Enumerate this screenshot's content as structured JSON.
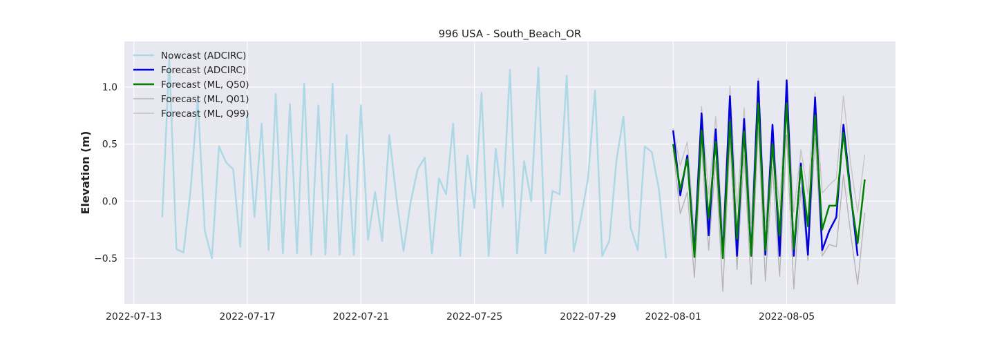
{
  "chart_data": {
    "type": "line",
    "title": "996 USA - South_Beach_OR",
    "xlabel": "",
    "ylabel": "Elevation (m)",
    "x_type": "datetime",
    "xlim": [
      "2022-07-12T16:00",
      "2022-08-08T20:00"
    ],
    "ylim": [
      -0.9,
      1.4
    ],
    "x_ticks": [
      "2022-07-13",
      "2022-07-17",
      "2022-07-21",
      "2022-07-25",
      "2022-07-29",
      "2022-08-01",
      "2022-08-05"
    ],
    "y_ticks": [
      -0.5,
      0.0,
      0.5,
      1.0
    ],
    "y_tick_labels": [
      "−0.5",
      "0.0",
      "0.5",
      "1.0"
    ],
    "grid": true,
    "background": "#e8e8f0",
    "legend_position": "top-left",
    "series": [
      {
        "name": "Nowcast (ADCIRC)",
        "color": "#add8e6",
        "width": 2.5,
        "points": [
          [
            "2022-07-14T00:00",
            -0.14
          ],
          [
            "2022-07-14T06:00",
            1.25
          ],
          [
            "2022-07-14T12:00",
            -0.42
          ],
          [
            "2022-07-14T18:00",
            -0.45
          ],
          [
            "2022-07-15T00:00",
            0.1
          ],
          [
            "2022-07-15T06:00",
            0.9
          ],
          [
            "2022-07-15T12:00",
            -0.26
          ],
          [
            "2022-07-15T18:00",
            -0.5
          ],
          [
            "2022-07-16T00:00",
            0.48
          ],
          [
            "2022-07-16T06:00",
            0.34
          ],
          [
            "2022-07-16T12:00",
            0.28
          ],
          [
            "2022-07-16T18:00",
            -0.4
          ],
          [
            "2022-07-17T00:00",
            0.75
          ],
          [
            "2022-07-17T06:00",
            -0.14
          ],
          [
            "2022-07-17T12:00",
            0.68
          ],
          [
            "2022-07-17T18:00",
            -0.43
          ],
          [
            "2022-07-18T00:00",
            0.94
          ],
          [
            "2022-07-18T06:00",
            -0.46
          ],
          [
            "2022-07-18T12:00",
            0.85
          ],
          [
            "2022-07-18T18:00",
            -0.46
          ],
          [
            "2022-07-19T00:00",
            1.03
          ],
          [
            "2022-07-19T06:00",
            -0.47
          ],
          [
            "2022-07-19T12:00",
            0.84
          ],
          [
            "2022-07-19T18:00",
            -0.47
          ],
          [
            "2022-07-20T00:00",
            1.03
          ],
          [
            "2022-07-20T06:00",
            -0.47
          ],
          [
            "2022-07-20T12:00",
            0.58
          ],
          [
            "2022-07-20T18:00",
            -0.47
          ],
          [
            "2022-07-21T00:00",
            0.84
          ],
          [
            "2022-07-21T06:00",
            -0.34
          ],
          [
            "2022-07-21T12:00",
            0.08
          ],
          [
            "2022-07-21T18:00",
            -0.35
          ],
          [
            "2022-07-22T00:00",
            0.58
          ],
          [
            "2022-07-22T06:00",
            0.03
          ],
          [
            "2022-07-22T12:00",
            -0.44
          ],
          [
            "2022-07-22T18:00",
            -0.01
          ],
          [
            "2022-07-23T00:00",
            0.28
          ],
          [
            "2022-07-23T06:00",
            0.38
          ],
          [
            "2022-07-23T12:00",
            -0.46
          ],
          [
            "2022-07-23T18:00",
            0.2
          ],
          [
            "2022-07-24T00:00",
            0.06
          ],
          [
            "2022-07-24T06:00",
            0.68
          ],
          [
            "2022-07-24T12:00",
            -0.48
          ],
          [
            "2022-07-24T18:00",
            0.4
          ],
          [
            "2022-07-25T00:00",
            -0.06
          ],
          [
            "2022-07-25T06:00",
            0.95
          ],
          [
            "2022-07-25T12:00",
            -0.48
          ],
          [
            "2022-07-25T18:00",
            0.46
          ],
          [
            "2022-07-26T00:00",
            -0.05
          ],
          [
            "2022-07-26T06:00",
            1.15
          ],
          [
            "2022-07-26T12:00",
            -0.46
          ],
          [
            "2022-07-26T18:00",
            0.35
          ],
          [
            "2022-07-27T00:00",
            0.0
          ],
          [
            "2022-07-27T06:00",
            1.17
          ],
          [
            "2022-07-27T12:00",
            -0.46
          ],
          [
            "2022-07-27T18:00",
            0.09
          ],
          [
            "2022-07-28T00:00",
            0.06
          ],
          [
            "2022-07-28T06:00",
            1.1
          ],
          [
            "2022-07-28T12:00",
            -0.44
          ],
          [
            "2022-07-28T18:00",
            -0.15
          ],
          [
            "2022-07-29T00:00",
            0.2
          ],
          [
            "2022-07-29T06:00",
            0.97
          ],
          [
            "2022-07-29T12:00",
            -0.48
          ],
          [
            "2022-07-29T18:00",
            -0.35
          ],
          [
            "2022-07-30T00:00",
            0.35
          ],
          [
            "2022-07-30T06:00",
            0.74
          ],
          [
            "2022-07-30T12:00",
            -0.23
          ],
          [
            "2022-07-30T18:00",
            -0.43
          ],
          [
            "2022-07-31T00:00",
            0.48
          ],
          [
            "2022-07-31T06:00",
            0.43
          ],
          [
            "2022-07-31T12:00",
            0.1
          ],
          [
            "2022-07-31T18:00",
            -0.5
          ]
        ]
      },
      {
        "name": "Forecast (ADCIRC)",
        "color": "#0000dd",
        "width": 2.5,
        "points": [
          [
            "2022-08-01T00:00",
            0.62
          ],
          [
            "2022-08-01T06:00",
            0.05
          ],
          [
            "2022-08-01T12:00",
            0.4
          ],
          [
            "2022-08-01T18:00",
            -0.45
          ],
          [
            "2022-08-02T00:00",
            0.77
          ],
          [
            "2022-08-02T06:00",
            -0.3
          ],
          [
            "2022-08-02T12:00",
            0.63
          ],
          [
            "2022-08-02T18:00",
            -0.48
          ],
          [
            "2022-08-03T00:00",
            0.92
          ],
          [
            "2022-08-03T06:00",
            -0.48
          ],
          [
            "2022-08-03T12:00",
            0.72
          ],
          [
            "2022-08-03T18:00",
            -0.48
          ],
          [
            "2022-08-04T00:00",
            1.05
          ],
          [
            "2022-08-04T06:00",
            -0.47
          ],
          [
            "2022-08-04T12:00",
            0.67
          ],
          [
            "2022-08-04T18:00",
            -0.48
          ],
          [
            "2022-08-05T00:00",
            1.06
          ],
          [
            "2022-08-05T06:00",
            -0.48
          ],
          [
            "2022-08-05T12:00",
            0.33
          ],
          [
            "2022-08-05T18:00",
            -0.47
          ],
          [
            "2022-08-06T00:00",
            0.91
          ],
          [
            "2022-08-06T06:00",
            -0.43
          ],
          [
            "2022-08-06T12:00",
            -0.26
          ],
          [
            "2022-08-06T18:00",
            -0.14
          ],
          [
            "2022-08-07T00:00",
            0.67
          ],
          [
            "2022-08-07T06:00",
            0.08
          ],
          [
            "2022-08-07T12:00",
            -0.48
          ]
        ]
      },
      {
        "name": "Forecast (ML, Q50)",
        "color": "#008000",
        "width": 2.5,
        "points": [
          [
            "2022-08-01T00:00",
            0.5
          ],
          [
            "2022-08-01T06:00",
            0.1
          ],
          [
            "2022-08-01T12:00",
            0.37
          ],
          [
            "2022-08-01T18:00",
            -0.49
          ],
          [
            "2022-08-02T00:00",
            0.62
          ],
          [
            "2022-08-02T06:00",
            -0.15
          ],
          [
            "2022-08-02T12:00",
            0.52
          ],
          [
            "2022-08-02T18:00",
            -0.5
          ],
          [
            "2022-08-03T00:00",
            0.7
          ],
          [
            "2022-08-03T06:00",
            -0.33
          ],
          [
            "2022-08-03T12:00",
            0.61
          ],
          [
            "2022-08-03T18:00",
            -0.48
          ],
          [
            "2022-08-04T00:00",
            0.86
          ],
          [
            "2022-08-04T06:00",
            -0.43
          ],
          [
            "2022-08-04T12:00",
            0.5
          ],
          [
            "2022-08-04T18:00",
            -0.3
          ],
          [
            "2022-08-05T00:00",
            0.86
          ],
          [
            "2022-08-05T06:00",
            -0.42
          ],
          [
            "2022-08-05T12:00",
            0.3
          ],
          [
            "2022-08-05T18:00",
            -0.22
          ],
          [
            "2022-08-06T00:00",
            0.75
          ],
          [
            "2022-08-06T06:00",
            -0.25
          ],
          [
            "2022-08-06T12:00",
            -0.04
          ],
          [
            "2022-08-06T18:00",
            -0.04
          ],
          [
            "2022-08-07T00:00",
            0.6
          ],
          [
            "2022-08-07T06:00",
            0.05
          ],
          [
            "2022-08-07T12:00",
            -0.37
          ],
          [
            "2022-08-07T18:00",
            0.19
          ]
        ]
      },
      {
        "name": "Forecast (ML, Q01)",
        "color": "#b4b4b4",
        "width": 1.4,
        "points": [
          [
            "2022-08-01T00:00",
            0.45
          ],
          [
            "2022-08-01T06:00",
            -0.11
          ],
          [
            "2022-08-01T12:00",
            0.08
          ],
          [
            "2022-08-01T18:00",
            -0.67
          ],
          [
            "2022-08-02T00:00",
            0.49
          ],
          [
            "2022-08-02T06:00",
            -0.43
          ],
          [
            "2022-08-02T12:00",
            0.35
          ],
          [
            "2022-08-02T18:00",
            -0.79
          ],
          [
            "2022-08-03T00:00",
            0.53
          ],
          [
            "2022-08-03T06:00",
            -0.6
          ],
          [
            "2022-08-03T12:00",
            0.4
          ],
          [
            "2022-08-03T18:00",
            -0.73
          ],
          [
            "2022-08-04T00:00",
            0.65
          ],
          [
            "2022-08-04T06:00",
            -0.7
          ],
          [
            "2022-08-04T12:00",
            0.3
          ],
          [
            "2022-08-04T18:00",
            -0.66
          ],
          [
            "2022-08-05T00:00",
            0.58
          ],
          [
            "2022-08-05T06:00",
            -0.77
          ],
          [
            "2022-08-05T12:00",
            0.12
          ],
          [
            "2022-08-05T18:00",
            -0.52
          ],
          [
            "2022-08-06T00:00",
            0.55
          ],
          [
            "2022-08-06T06:00",
            -0.48
          ],
          [
            "2022-08-06T12:00",
            -0.38
          ],
          [
            "2022-08-06T18:00",
            -0.4
          ],
          [
            "2022-08-07T00:00",
            0.23
          ],
          [
            "2022-08-07T06:00",
            -0.28
          ],
          [
            "2022-08-07T12:00",
            -0.73
          ],
          [
            "2022-08-07T18:00",
            -0.1
          ]
        ]
      },
      {
        "name": "Forecast (ML, Q99)",
        "color": "#c4c4c4",
        "width": 1.4,
        "points": [
          [
            "2022-08-01T00:00",
            0.64
          ],
          [
            "2022-08-01T06:00",
            0.31
          ],
          [
            "2022-08-01T12:00",
            0.52
          ],
          [
            "2022-08-01T18:00",
            -0.27
          ],
          [
            "2022-08-02T00:00",
            0.83
          ],
          [
            "2022-08-02T06:00",
            0.06
          ],
          [
            "2022-08-02T12:00",
            0.74
          ],
          [
            "2022-08-02T18:00",
            -0.28
          ],
          [
            "2022-08-03T00:00",
            1.01
          ],
          [
            "2022-08-03T06:00",
            -0.07
          ],
          [
            "2022-08-03T12:00",
            0.82
          ],
          [
            "2022-08-03T18:00",
            -0.2
          ],
          [
            "2022-08-04T00:00",
            1.08
          ],
          [
            "2022-08-04T06:00",
            -0.2
          ],
          [
            "2022-08-04T12:00",
            0.6
          ],
          [
            "2022-08-04T18:00",
            -0.05
          ],
          [
            "2022-08-05T00:00",
            1.06
          ],
          [
            "2022-08-05T06:00",
            -0.1
          ],
          [
            "2022-08-05T12:00",
            0.45
          ],
          [
            "2022-08-05T18:00",
            0.06
          ],
          [
            "2022-08-06T00:00",
            0.95
          ],
          [
            "2022-08-06T06:00",
            0.07
          ],
          [
            "2022-08-06T12:00",
            0.14
          ],
          [
            "2022-08-06T18:00",
            0.2
          ],
          [
            "2022-08-07T00:00",
            0.92
          ],
          [
            "2022-08-07T06:00",
            0.33
          ],
          [
            "2022-08-07T12:00",
            -0.1
          ],
          [
            "2022-08-07T18:00",
            0.41
          ]
        ]
      }
    ]
  }
}
